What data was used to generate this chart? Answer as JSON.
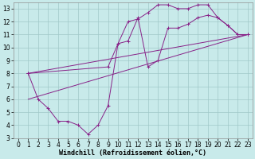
{
  "line1_x": [
    1,
    2,
    3,
    4,
    5,
    6,
    7,
    8,
    9,
    10,
    11,
    12,
    13,
    14,
    15,
    16,
    17,
    18,
    19,
    20,
    21,
    22,
    23
  ],
  "line1_y": [
    8.0,
    6.0,
    5.3,
    4.3,
    4.3,
    4.0,
    3.3,
    4.0,
    5.5,
    10.3,
    12.0,
    12.2,
    12.7,
    13.3,
    13.3,
    13.0,
    13.0,
    13.3,
    13.3,
    12.3,
    11.7,
    11.0,
    11.0
  ],
  "line2_x": [
    1,
    9,
    10,
    11,
    12,
    13,
    14,
    15,
    16,
    17,
    18,
    19,
    20,
    21,
    22,
    23
  ],
  "line2_y": [
    8.0,
    8.5,
    10.3,
    10.5,
    12.3,
    8.5,
    9.0,
    11.5,
    11.5,
    11.8,
    12.3,
    12.5,
    12.3,
    11.7,
    11.0,
    11.0
  ],
  "line3_x": [
    1,
    23
  ],
  "line3_y": [
    8.0,
    11.0
  ],
  "line4_x": [
    1,
    23
  ],
  "line4_y": [
    6.0,
    11.0
  ],
  "line_color": "#882288",
  "bg_color": "#c8eaea",
  "grid_color": "#a0c8c8",
  "xlabel": "Windchill (Refroidissement éolien,°C)",
  "xlim": [
    -0.5,
    23.5
  ],
  "ylim": [
    3,
    13.5
  ],
  "xticks": [
    0,
    1,
    2,
    3,
    4,
    5,
    6,
    7,
    8,
    9,
    10,
    11,
    12,
    13,
    14,
    15,
    16,
    17,
    18,
    19,
    20,
    21,
    22,
    23
  ],
  "yticks": [
    3,
    4,
    5,
    6,
    7,
    8,
    9,
    10,
    11,
    12,
    13
  ],
  "tick_fontsize": 5.5,
  "xlabel_fontsize": 6
}
